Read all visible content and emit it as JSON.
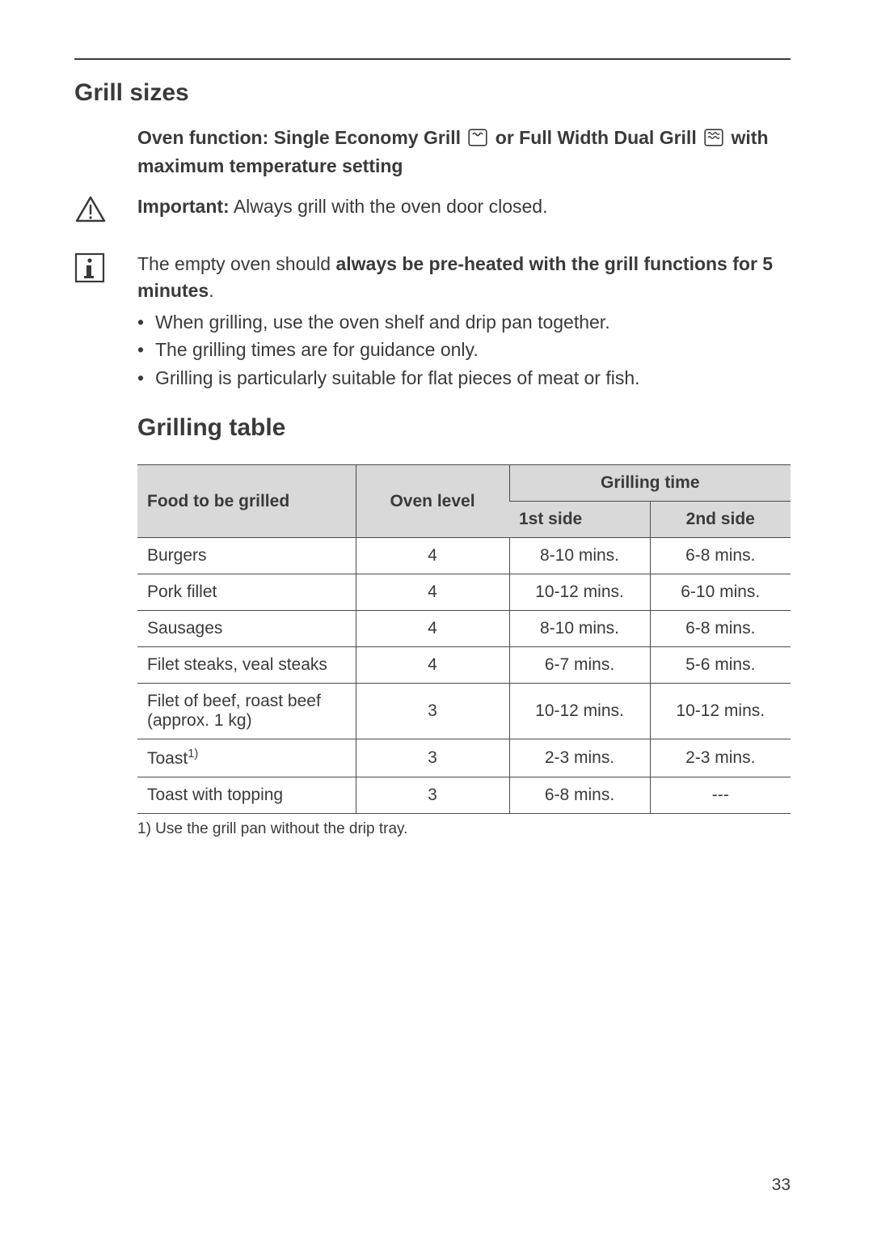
{
  "page_number": "33",
  "section1_title": "Grill sizes",
  "oven_function": {
    "prefix": "Oven function: Single Economy Grill ",
    "mid": " or Full Width Dual Grill ",
    "suffix": " with maximum temperature setting"
  },
  "important": {
    "label": "Important:",
    "text": " Always grill with the oven door closed."
  },
  "info": {
    "lead": "The empty oven should ",
    "bold": "always be pre-heated with the grill functions for 5 minutes",
    "trail": "."
  },
  "bullets": [
    "When grilling, use the oven shelf and drip pan together.",
    "The grilling times are for guidance only.",
    "Grilling is particularly suitable for flat pieces of meat or fish."
  ],
  "section2_title": "Grilling table",
  "table": {
    "columns": [
      "Food to be grilled",
      "Oven level",
      "Grilling time"
    ],
    "sub_columns": [
      "1st side",
      "2nd side"
    ],
    "rows": [
      {
        "food": "Burgers",
        "level": "4",
        "side1": "8-10 mins.",
        "side2": "6-8 mins."
      },
      {
        "food": "Pork fillet",
        "level": "4",
        "side1": "10-12 mins.",
        "side2": "6-10 mins."
      },
      {
        "food": "Sausages",
        "level": "4",
        "side1": "8-10 mins.",
        "side2": "6-8 mins."
      },
      {
        "food": "Filet steaks, veal steaks",
        "level": "4",
        "side1": "6-7 mins.",
        "side2": "5-6 mins."
      },
      {
        "food": "Filet of beef, roast beef (approx. 1 kg)",
        "level": "3",
        "side1": "10-12 mins.",
        "side2": "10-12 mins."
      },
      {
        "food": "Toast",
        "food_sup": "1)",
        "level": "3",
        "side1": "2-3 mins.",
        "side2": "2-3 mins."
      },
      {
        "food": "Toast with topping",
        "level": "3",
        "side1": "6-8 mins.",
        "side2": "---"
      }
    ]
  },
  "footnote": "1) Use the grill pan without the drip tray."
}
